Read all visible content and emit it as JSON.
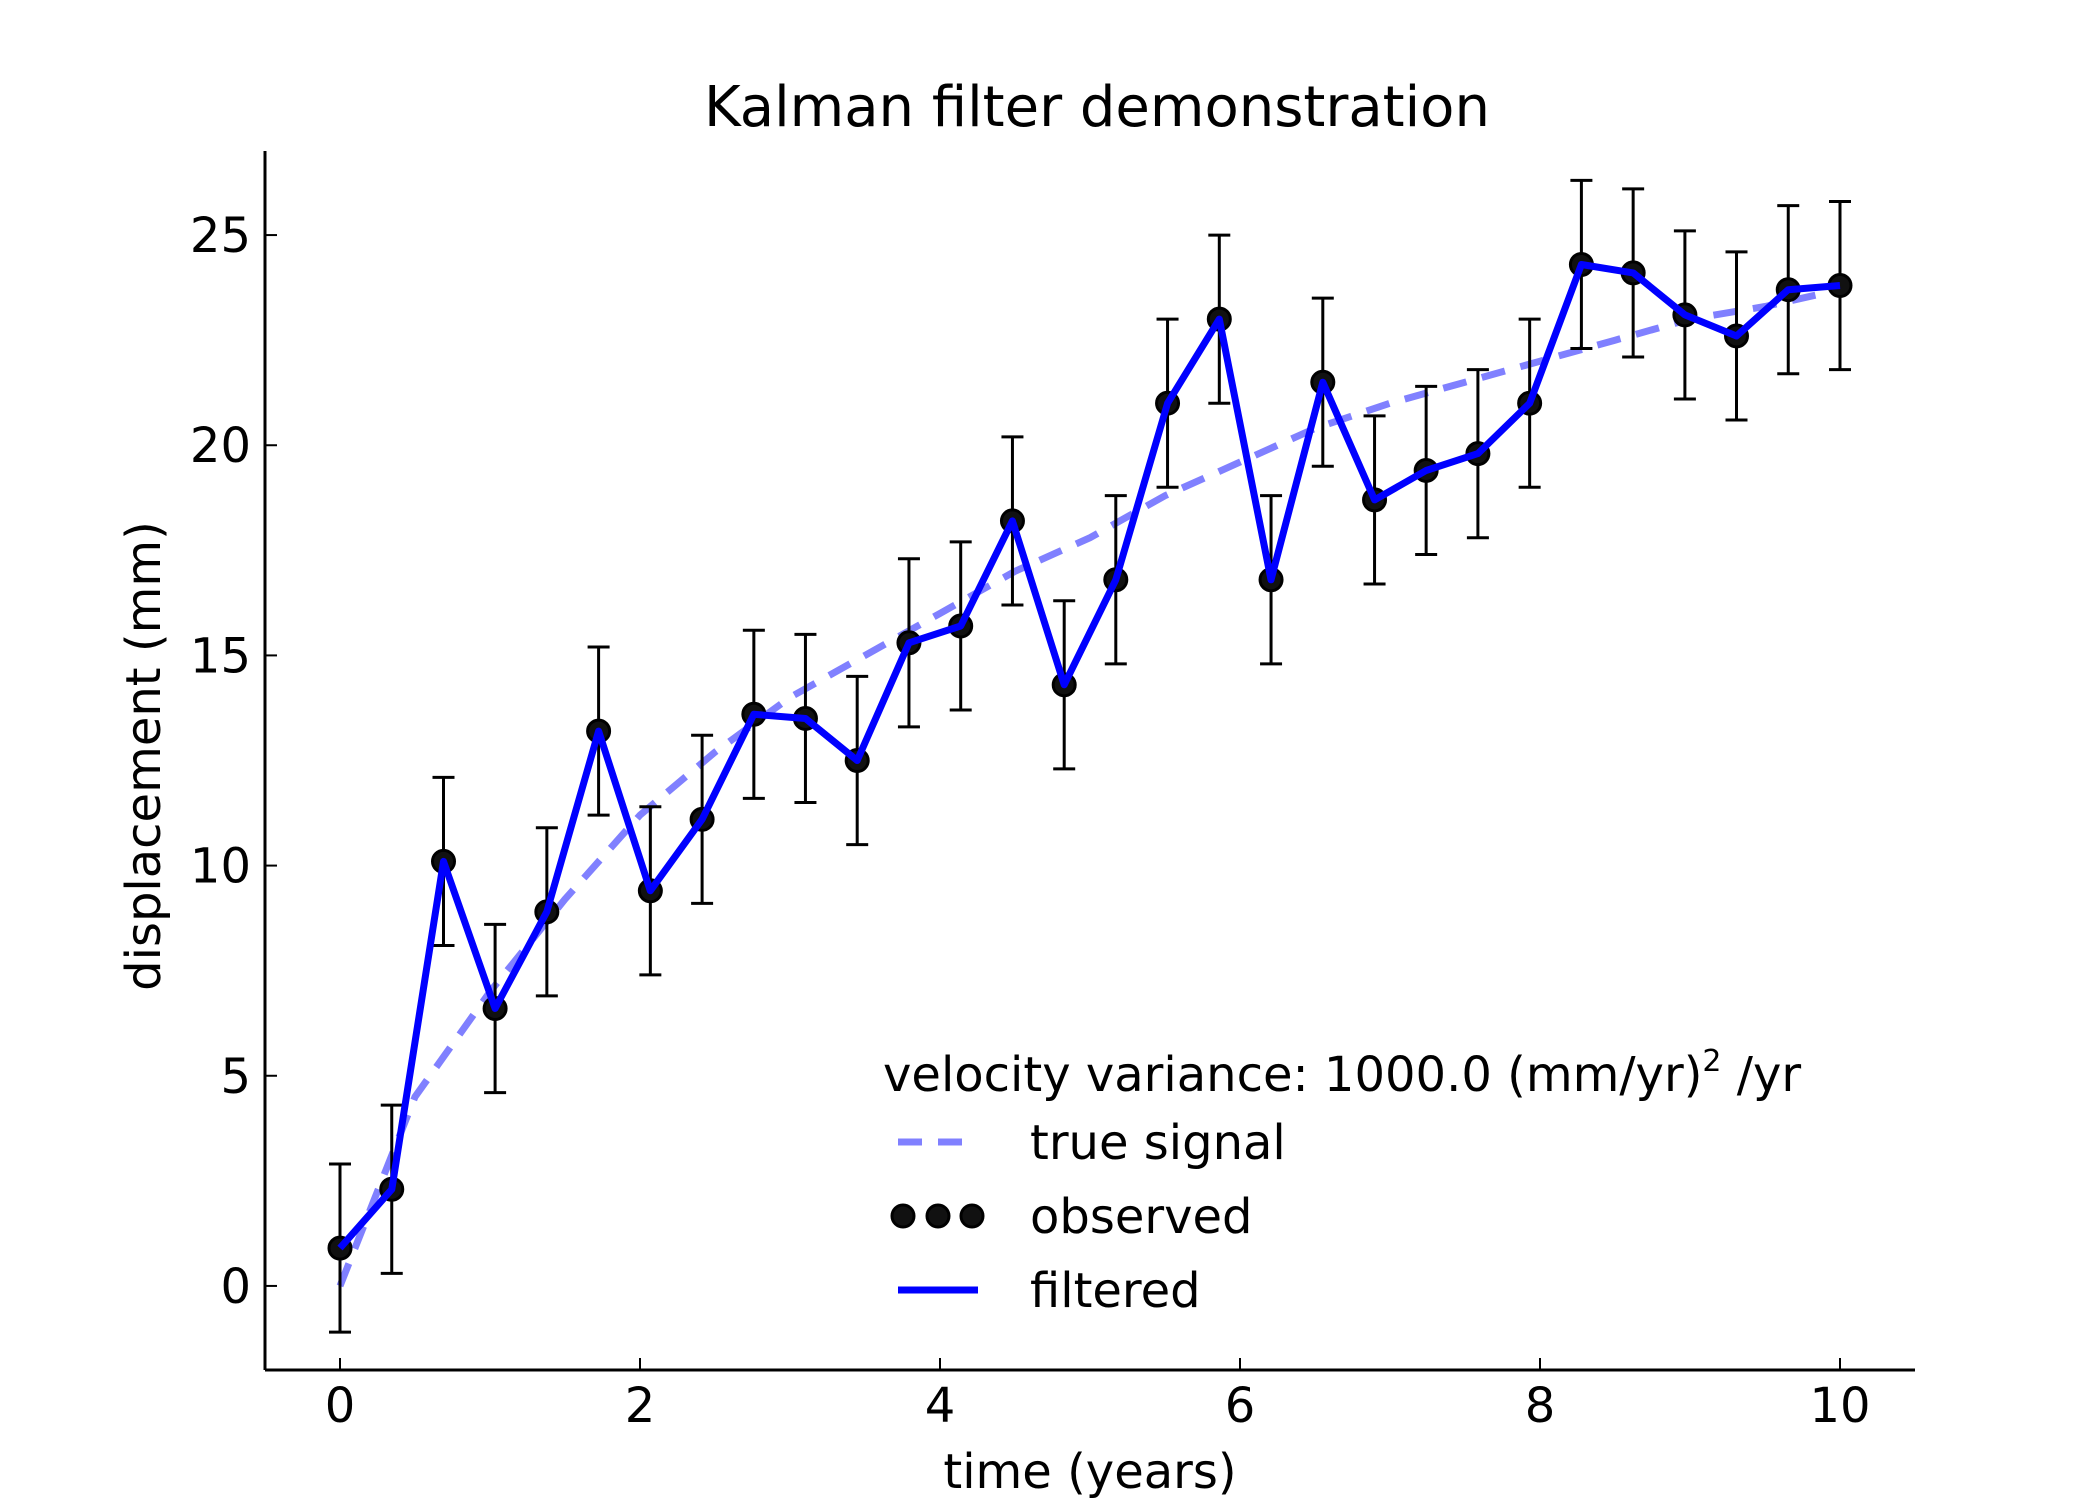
{
  "chart_data": {
    "type": "line",
    "title": "Kalman filter demonstration",
    "xlabel": "time (years)",
    "ylabel": "displacement (mm)",
    "xlim": [
      -0.5,
      10.5
    ],
    "ylim": [
      -2,
      27
    ],
    "xticks": [
      0,
      2,
      4,
      6,
      8,
      10
    ],
    "yticks": [
      0,
      5,
      10,
      15,
      20,
      25
    ],
    "grid": false,
    "legend_position": "bottom-right",
    "legend_title": {
      "prefix": "velocity variance: 1000.0 (mm/yr)",
      "superscript": "2",
      "suffix": " /yr"
    },
    "error_bar_halfwidth": 2.0,
    "colors": {
      "true_signal": "#8080ff",
      "filtered": "#0000ff",
      "observed": "#000000"
    },
    "series": [
      {
        "name": "true signal",
        "style": "dashed",
        "x": [
          0,
          0.5,
          1.0,
          1.5,
          2.0,
          2.5,
          3.0,
          3.5,
          4.0,
          4.5,
          5.0,
          5.5,
          6.0,
          6.5,
          7.0,
          7.5,
          8.0,
          8.5,
          9.0,
          9.5,
          10.0
        ],
        "y": [
          0,
          4.5,
          7.0,
          9.2,
          11.2,
          12.7,
          14.0,
          15.0,
          16.0,
          17.0,
          17.8,
          18.8,
          19.6,
          20.4,
          21.0,
          21.5,
          22.0,
          22.5,
          23.0,
          23.3,
          23.7
        ]
      },
      {
        "name": "observed",
        "style": "markers-errorbars",
        "x": [
          0,
          0.345,
          0.69,
          1.034,
          1.379,
          1.724,
          2.069,
          2.414,
          2.759,
          3.103,
          3.448,
          3.793,
          4.138,
          4.483,
          4.828,
          5.172,
          5.517,
          5.862,
          6.207,
          6.552,
          6.897,
          7.241,
          7.586,
          7.931,
          8.276,
          8.621,
          8.966,
          9.31,
          9.655,
          10.0
        ],
        "y": [
          0.9,
          2.3,
          10.1,
          6.6,
          8.9,
          13.2,
          9.4,
          11.1,
          13.6,
          13.5,
          12.5,
          15.3,
          15.7,
          18.2,
          14.3,
          16.8,
          21.0,
          23.0,
          16.8,
          21.5,
          18.7,
          19.4,
          19.8,
          21.0,
          24.3,
          24.1,
          23.1,
          22.6,
          23.7,
          23.8
        ]
      },
      {
        "name": "filtered",
        "style": "solid",
        "x": [
          0,
          0.345,
          0.69,
          1.034,
          1.379,
          1.724,
          2.069,
          2.414,
          2.759,
          3.103,
          3.448,
          3.793,
          4.138,
          4.483,
          4.828,
          5.172,
          5.517,
          5.862,
          6.207,
          6.552,
          6.897,
          7.241,
          7.586,
          7.931,
          8.276,
          8.621,
          8.966,
          9.31,
          9.655,
          10.0
        ],
        "y": [
          0.9,
          2.3,
          10.1,
          6.6,
          8.9,
          13.2,
          9.4,
          11.1,
          13.6,
          13.5,
          12.5,
          15.3,
          15.7,
          18.2,
          14.3,
          16.8,
          21.0,
          23.0,
          16.8,
          21.5,
          18.7,
          19.4,
          19.8,
          21.0,
          24.3,
          24.1,
          23.1,
          22.6,
          23.7,
          23.8
        ]
      }
    ]
  }
}
